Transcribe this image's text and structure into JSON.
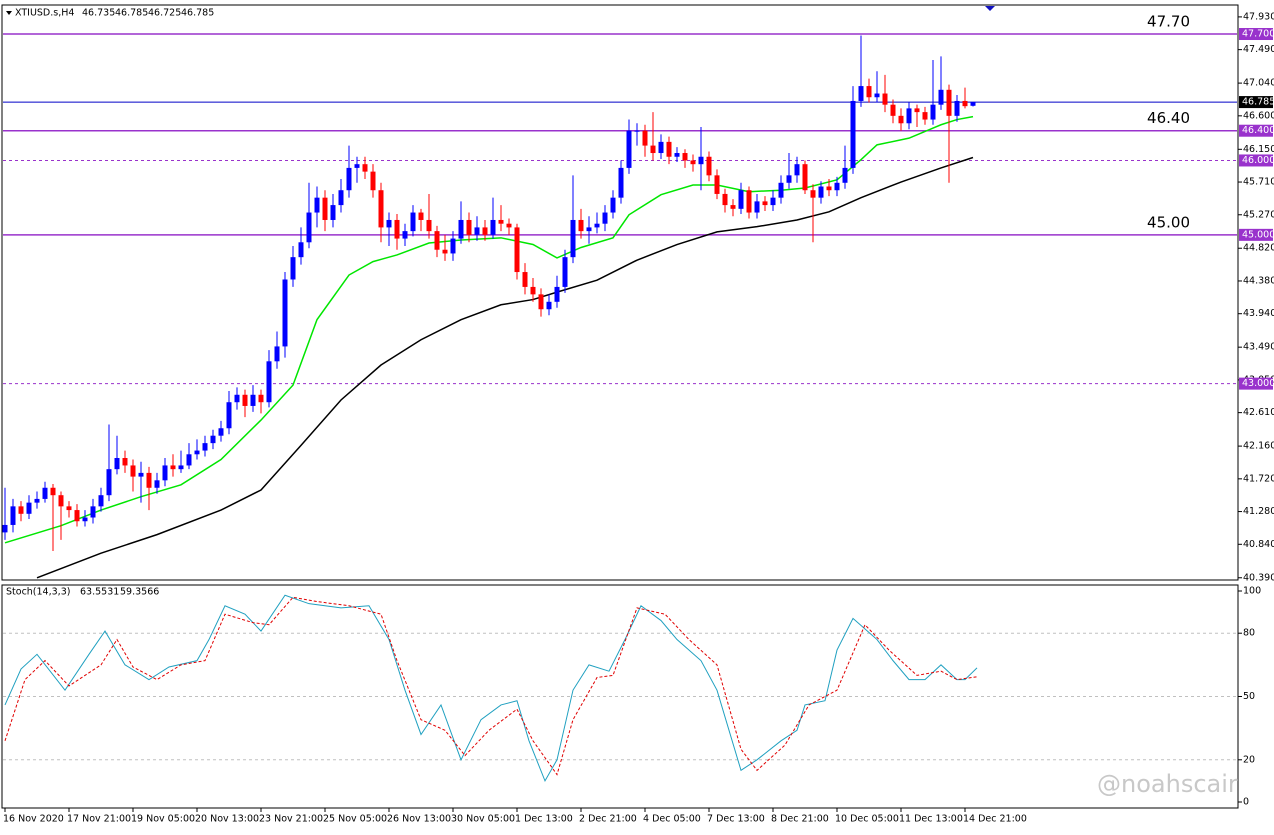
{
  "chart_data": {
    "type": "candlestick",
    "symbol": "XTIUSD.s,H4",
    "header_values": [
      46.735,
      46.785,
      46.725,
      46.785
    ],
    "watermark": "@noahscair",
    "up_color": "#0000ff",
    "down_color": "#ff0000",
    "ylim": [
      40.36,
      48.09
    ],
    "yticks": [
      {
        "value": 47.93,
        "label": "47.930"
      },
      {
        "value": 47.49,
        "label": "47.490"
      },
      {
        "value": 47.04,
        "label": "47.040"
      },
      {
        "value": 46.6,
        "label": "46.600"
      },
      {
        "value": 46.15,
        "label": "46.150"
      },
      {
        "value": 45.71,
        "label": "45.710"
      },
      {
        "value": 45.27,
        "label": "45.270"
      },
      {
        "value": 44.82,
        "label": "44.820"
      },
      {
        "value": 44.38,
        "label": "44.380"
      },
      {
        "value": 43.94,
        "label": "43.940"
      },
      {
        "value": 43.49,
        "label": "43.490"
      },
      {
        "value": 43.05,
        "label": "43.050"
      },
      {
        "value": 42.61,
        "label": "42.610"
      },
      {
        "value": 42.16,
        "label": "42.160"
      },
      {
        "value": 41.72,
        "label": "41.720"
      },
      {
        "value": 41.28,
        "label": "41.280"
      },
      {
        "value": 40.84,
        "label": "40.840"
      },
      {
        "value": 40.39,
        "label": "40.390"
      }
    ],
    "categories": [
      "16 Nov 2020",
      null,
      null,
      null,
      null,
      null,
      null,
      null,
      "17 Nov 21:00",
      null,
      null,
      null,
      null,
      null,
      null,
      null,
      "19 Nov 05:00",
      null,
      null,
      null,
      null,
      null,
      null,
      null,
      "20 Nov 13:00",
      null,
      null,
      null,
      null,
      null,
      null,
      null,
      "23 Nov 21:00",
      null,
      null,
      null,
      null,
      null,
      null,
      null,
      "25 Nov 05:00",
      null,
      null,
      null,
      null,
      null,
      null,
      null,
      "26 Nov 13:00",
      null,
      null,
      null,
      null,
      null,
      null,
      null,
      "30 Nov 05:00",
      null,
      null,
      null,
      null,
      null,
      null,
      null,
      "1 Dec 13:00",
      null,
      null,
      null,
      null,
      null,
      null,
      null,
      "2 Dec 21:00",
      null,
      null,
      null,
      null,
      null,
      null,
      null,
      "4 Dec 05:00",
      null,
      null,
      null,
      null,
      null,
      null,
      null,
      "7 Dec 13:00",
      null,
      null,
      null,
      null,
      null,
      null,
      null,
      "8 Dec 21:00",
      null,
      null,
      null,
      null,
      null,
      null,
      null,
      "10 Dec 05:00",
      null,
      null,
      null,
      null,
      null,
      null,
      null,
      "11 Dec 13:00",
      null,
      null,
      null,
      null,
      null,
      null,
      null,
      "14 Dec 21:00",
      null
    ],
    "candles": [
      [
        41.0,
        41.6,
        40.9,
        41.1
      ],
      [
        41.1,
        41.45,
        41.0,
        41.35
      ],
      [
        41.35,
        41.42,
        41.15,
        41.25
      ],
      [
        41.25,
        41.5,
        41.18,
        41.4
      ],
      [
        41.4,
        41.55,
        41.32,
        41.45
      ],
      [
        41.45,
        41.68,
        41.4,
        41.6
      ],
      [
        41.6,
        41.65,
        40.75,
        41.5
      ],
      [
        41.5,
        41.55,
        40.9,
        41.35
      ],
      [
        41.35,
        41.42,
        41.2,
        41.3
      ],
      [
        41.3,
        41.38,
        41.08,
        41.15
      ],
      [
        41.15,
        41.3,
        41.08,
        41.2
      ],
      [
        41.2,
        41.45,
        41.12,
        41.35
      ],
      [
        41.35,
        41.6,
        41.28,
        41.5
      ],
      [
        41.5,
        42.45,
        41.42,
        41.85
      ],
      [
        41.85,
        42.3,
        41.78,
        42.0
      ],
      [
        42.0,
        42.1,
        41.8,
        41.9
      ],
      [
        41.9,
        41.98,
        41.55,
        41.75
      ],
      [
        41.75,
        41.95,
        41.4,
        41.8
      ],
      [
        41.8,
        41.88,
        41.3,
        41.6
      ],
      [
        41.6,
        41.8,
        41.52,
        41.7
      ],
      [
        41.7,
        42.0,
        41.62,
        41.9
      ],
      [
        41.9,
        42.05,
        41.75,
        41.85
      ],
      [
        41.85,
        42.1,
        41.8,
        41.9
      ],
      [
        41.9,
        42.2,
        41.85,
        42.05
      ],
      [
        42.05,
        42.25,
        41.98,
        42.1
      ],
      [
        42.1,
        42.3,
        42.02,
        42.2
      ],
      [
        42.2,
        42.38,
        42.12,
        42.3
      ],
      [
        42.3,
        42.5,
        42.22,
        42.4
      ],
      [
        42.4,
        42.9,
        42.32,
        42.75
      ],
      [
        42.75,
        42.95,
        42.65,
        42.85
      ],
      [
        42.85,
        42.92,
        42.55,
        42.7
      ],
      [
        42.7,
        42.98,
        42.62,
        42.85
      ],
      [
        42.85,
        42.92,
        42.6,
        42.75
      ],
      [
        42.75,
        43.45,
        42.68,
        43.3
      ],
      [
        43.3,
        43.7,
        43.2,
        43.5
      ],
      [
        43.5,
        44.5,
        43.35,
        44.4
      ],
      [
        44.4,
        44.85,
        44.3,
        44.7
      ],
      [
        44.7,
        45.1,
        44.6,
        44.9
      ],
      [
        44.9,
        45.7,
        44.82,
        45.3
      ],
      [
        45.3,
        45.65,
        45.1,
        45.5
      ],
      [
        45.5,
        45.6,
        45.05,
        45.2
      ],
      [
        45.2,
        45.55,
        45.1,
        45.4
      ],
      [
        45.4,
        45.75,
        45.3,
        45.6
      ],
      [
        45.6,
        46.2,
        45.5,
        45.9
      ],
      [
        45.9,
        46.05,
        45.7,
        45.95
      ],
      [
        45.95,
        46.05,
        45.75,
        45.85
      ],
      [
        45.85,
        45.95,
        45.5,
        45.6
      ],
      [
        45.6,
        45.7,
        44.9,
        45.1
      ],
      [
        45.1,
        45.3,
        44.85,
        45.2
      ],
      [
        45.2,
        45.28,
        44.8,
        44.95
      ],
      [
        44.95,
        45.15,
        44.85,
        45.05
      ],
      [
        45.05,
        45.4,
        44.98,
        45.3
      ],
      [
        45.3,
        45.35,
        45.05,
        45.2
      ],
      [
        45.2,
        45.55,
        44.95,
        45.05
      ],
      [
        45.05,
        45.12,
        44.7,
        44.8
      ],
      [
        44.8,
        45.0,
        44.65,
        44.75
      ],
      [
        44.75,
        45.05,
        44.65,
        44.95
      ],
      [
        44.95,
        45.45,
        44.88,
        45.2
      ],
      [
        45.2,
        45.3,
        44.9,
        45.0
      ],
      [
        45.0,
        45.25,
        44.92,
        45.1
      ],
      [
        45.1,
        45.2,
        44.92,
        45.0
      ],
      [
        45.0,
        45.5,
        44.95,
        45.2
      ],
      [
        45.2,
        45.4,
        45.05,
        45.15
      ],
      [
        45.15,
        45.22,
        45.0,
        45.1
      ],
      [
        45.1,
        45.15,
        44.4,
        44.5
      ],
      [
        44.5,
        44.62,
        44.2,
        44.3
      ],
      [
        44.3,
        44.42,
        44.1,
        44.2
      ],
      [
        44.2,
        44.28,
        43.9,
        44.0
      ],
      [
        44.0,
        44.2,
        43.92,
        44.1
      ],
      [
        44.1,
        44.45,
        44.02,
        44.3
      ],
      [
        44.3,
        44.8,
        44.22,
        44.7
      ],
      [
        44.7,
        45.8,
        44.62,
        45.2
      ],
      [
        45.2,
        45.35,
        44.95,
        45.05
      ],
      [
        45.05,
        45.25,
        44.88,
        45.1
      ],
      [
        45.1,
        45.3,
        45.02,
        45.15
      ],
      [
        45.15,
        45.4,
        45.05,
        45.3
      ],
      [
        45.3,
        45.6,
        45.22,
        45.5
      ],
      [
        45.5,
        46.0,
        45.42,
        45.9
      ],
      [
        45.9,
        46.55,
        45.82,
        46.4
      ],
      [
        46.4,
        46.5,
        46.2,
        46.4
      ],
      [
        46.4,
        46.48,
        46.05,
        46.2
      ],
      [
        46.2,
        46.65,
        46.0,
        46.1
      ],
      [
        46.1,
        46.35,
        46.02,
        46.25
      ],
      [
        46.25,
        46.32,
        45.95,
        46.05
      ],
      [
        46.05,
        46.18,
        45.98,
        46.1
      ],
      [
        46.1,
        46.15,
        45.9,
        46.0
      ],
      [
        46.0,
        46.08,
        45.85,
        45.95
      ],
      [
        45.95,
        46.45,
        45.6,
        46.05
      ],
      [
        46.05,
        46.12,
        45.72,
        45.8
      ],
      [
        45.8,
        45.88,
        45.48,
        45.55
      ],
      [
        45.55,
        45.62,
        45.3,
        45.4
      ],
      [
        45.4,
        45.48,
        45.25,
        45.35
      ],
      [
        45.35,
        45.7,
        45.28,
        45.6
      ],
      [
        45.6,
        45.65,
        45.22,
        45.3
      ],
      [
        45.3,
        45.55,
        45.22,
        45.45
      ],
      [
        45.45,
        45.52,
        45.32,
        45.4
      ],
      [
        45.4,
        45.6,
        45.32,
        45.5
      ],
      [
        45.5,
        45.8,
        45.42,
        45.7
      ],
      [
        45.7,
        46.1,
        45.62,
        45.8
      ],
      [
        45.8,
        46.05,
        45.7,
        45.95
      ],
      [
        45.95,
        46.0,
        45.55,
        45.6
      ],
      [
        45.6,
        45.68,
        44.9,
        45.5
      ],
      [
        45.5,
        45.72,
        45.42,
        45.65
      ],
      [
        45.65,
        45.75,
        45.52,
        45.6
      ],
      [
        45.6,
        45.78,
        45.52,
        45.7
      ],
      [
        45.7,
        46.2,
        45.62,
        45.9
      ],
      [
        45.9,
        47.0,
        45.82,
        46.8
      ],
      [
        46.8,
        47.68,
        46.72,
        47.0
      ],
      [
        47.0,
        47.1,
        46.78,
        46.85
      ],
      [
        46.85,
        47.2,
        46.78,
        46.9
      ],
      [
        46.9,
        47.15,
        46.65,
        46.75
      ],
      [
        46.75,
        46.82,
        46.5,
        46.6
      ],
      [
        46.6,
        46.7,
        46.4,
        46.5
      ],
      [
        46.5,
        46.78,
        46.42,
        46.7
      ],
      [
        46.7,
        46.75,
        46.45,
        46.65
      ],
      [
        46.65,
        46.72,
        46.48,
        46.55
      ],
      [
        46.55,
        47.35,
        46.48,
        46.75
      ],
      [
        46.75,
        47.4,
        46.68,
        46.95
      ],
      [
        46.95,
        47.02,
        45.7,
        46.6
      ],
      [
        46.6,
        46.88,
        46.52,
        46.8
      ],
      [
        46.8,
        46.98,
        46.7,
        46.73
      ],
      [
        46.735,
        46.785,
        46.725,
        46.785
      ]
    ],
    "lines": [
      {
        "color": "#00e600",
        "x": [
          0,
          7,
          12,
          17,
          22,
          27,
          32,
          36,
          39,
          43,
          46,
          49,
          53,
          57,
          62,
          66,
          69,
          72,
          76,
          78,
          82,
          86,
          89,
          93,
          97,
          100,
          104,
          107,
          109,
          113,
          117,
          119,
          121
        ],
        "values": [
          40.86,
          41.09,
          41.3,
          41.48,
          41.64,
          41.98,
          42.51,
          42.98,
          43.86,
          44.46,
          44.64,
          44.73,
          44.89,
          44.93,
          44.96,
          44.87,
          44.69,
          44.83,
          44.96,
          45.27,
          45.54,
          45.67,
          45.67,
          45.58,
          45.6,
          45.63,
          45.74,
          46.01,
          46.21,
          46.3,
          46.48,
          46.55,
          46.59
        ]
      },
      {
        "color": "#000000",
        "x": [
          4,
          12,
          19,
          27,
          32,
          37,
          42,
          47,
          52,
          57,
          62,
          66,
          69,
          74,
          79,
          84,
          89,
          94,
          99,
          103,
          107,
          112,
          117,
          121
        ],
        "values": [
          40.39,
          40.72,
          40.97,
          41.3,
          41.57,
          42.17,
          42.78,
          43.25,
          43.59,
          43.86,
          44.06,
          44.13,
          44.23,
          44.39,
          44.66,
          44.87,
          45.04,
          45.11,
          45.2,
          45.31,
          45.5,
          45.71,
          45.9,
          46.04
        ]
      }
    ],
    "levels": [
      {
        "value": 47.7,
        "label": "47.700",
        "text": "47.70",
        "style": "solid",
        "color": "#9932cc"
      },
      {
        "value": 46.4,
        "label": "46.400",
        "text": "46.40",
        "style": "solid",
        "color": "#9932cc"
      },
      {
        "value": 46.0,
        "label": "46.000",
        "style": "dotted",
        "color": "#9932cc"
      },
      {
        "value": 45.0,
        "label": "45.000",
        "text": "45.00",
        "style": "solid",
        "color": "#9932cc"
      },
      {
        "value": 43.0,
        "label": "43.000",
        "style": "dotted",
        "color": "#9932cc"
      }
    ],
    "last": {
      "value": 46.785,
      "label": "46.785",
      "color": "#0000c8"
    },
    "stochastic": {
      "name": "Stoch(14,3,3)",
      "header_values": [
        63.5531,
        59.3566
      ],
      "ylim": [
        0,
        100
      ],
      "yticks": [
        100,
        80,
        50,
        20,
        0
      ],
      "levels": [
        80,
        50,
        20
      ],
      "series": [
        {
          "color": "#20a0c0",
          "dash": false,
          "x": [
            0,
            2,
            4,
            7.5,
            10.5,
            12.5,
            15,
            18,
            20.5,
            24,
            25.5,
            27.5,
            30,
            32,
            35,
            38,
            42,
            45.5,
            48,
            50,
            52,
            54.5,
            57,
            59.5,
            62,
            64,
            65.5,
            67.5,
            69,
            71,
            73,
            75.5,
            77.5,
            79.5,
            82,
            84,
            87,
            89,
            92,
            94,
            97,
            99,
            100,
            102.5,
            104,
            106,
            109,
            111,
            113,
            115,
            117,
            119,
            120,
            121.5
          ],
          "values": [
            46,
            63,
            70,
            53,
            70,
            81,
            65,
            58,
            64,
            67,
            77,
            93,
            89,
            81,
            98,
            94,
            92,
            93,
            77,
            53,
            32,
            46,
            20,
            39,
            46,
            48,
            29,
            10,
            20,
            53,
            65,
            62,
            77,
            93,
            86,
            77,
            67,
            53,
            15,
            20,
            29,
            34,
            46,
            48,
            72,
            87,
            77,
            67,
            58,
            58,
            65,
            58,
            58,
            63.5531
          ]
        },
        {
          "color": "#e00000",
          "dash": true,
          "x": [
            0,
            2.5,
            5,
            8,
            12,
            14,
            16,
            19,
            22,
            25,
            27.5,
            31,
            33,
            36,
            39,
            43,
            47,
            49,
            52,
            55,
            57.5,
            60.5,
            64,
            66,
            69,
            71,
            74,
            76,
            79,
            82.5,
            85.5,
            89,
            92,
            94,
            97.5,
            100.5,
            104,
            107.5,
            110.5,
            114,
            117,
            119,
            121.5
          ],
          "values": [
            29,
            58,
            67,
            55,
            65,
            77,
            64,
            58,
            65,
            67,
            89,
            85,
            84,
            97,
            95,
            93,
            89,
            67,
            39,
            34,
            22,
            34,
            44,
            29,
            13,
            39,
            59,
            60,
            92,
            89,
            77,
            65,
            25,
            15,
            27,
            46,
            53,
            84,
            72,
            60,
            62,
            58,
            59.3566
          ]
        }
      ]
    }
  }
}
